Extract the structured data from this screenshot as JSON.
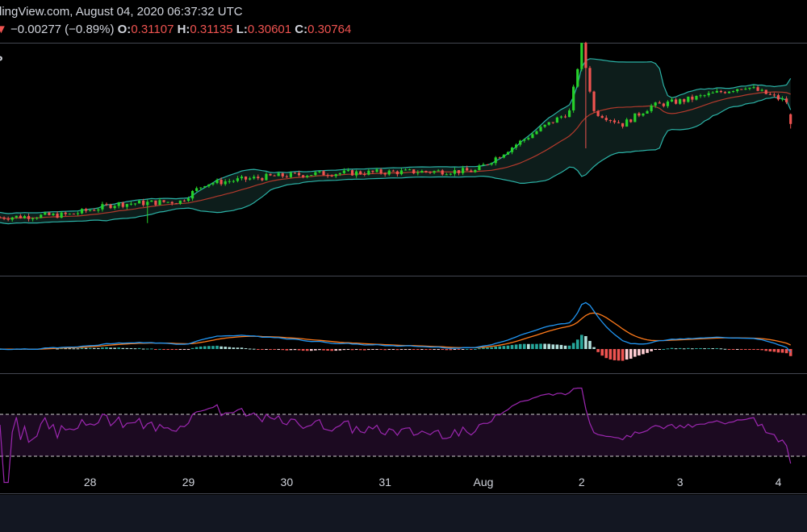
{
  "header": {
    "source_text": "dingView.com, August 04, 2020 06:37:32 UTC",
    "arrow": "▼",
    "change": "−0.00277 (−0.89%)",
    "o_label": "O:",
    "o_value": "0.31107",
    "h_label": "H:",
    "h_value": "0.31135",
    "l_label": "L:",
    "l_value": "0.30601",
    "c_label": "C:",
    "c_value": "0.30764",
    "symbol_fragment": "P"
  },
  "colors": {
    "up": "#26d12a",
    "down": "#ef5350",
    "band": "#2bb3a7",
    "band_fill": "#0d1d1b",
    "basis": "#b23a2c",
    "macd": "#2196f3",
    "signal": "#ff7a1a",
    "hist_up": "#26a69a",
    "hist_up_light": "#b2dfdb",
    "hist_down": "#ef5350",
    "hist_down_light": "#ffcdd2",
    "rsi": "#9c27b0",
    "rsi_fill": "#1c0a21",
    "rsi_level": "#cfcfcf",
    "axis_text": "#d1d4dc"
  },
  "chart_data": [
    {
      "type": "candlestick",
      "title": "",
      "time_labels": [
        "28",
        "29",
        "30",
        "31",
        "Aug",
        "2",
        "3",
        "4"
      ],
      "x_tick_positions_hours": [
        0,
        24,
        48,
        72,
        96,
        120,
        144,
        168
      ],
      "x_range_hours": [
        -22,
        175
      ],
      "ylim": [
        0.255,
        0.335
      ],
      "last": {
        "open": 0.31107,
        "high": 0.31135,
        "low": 0.30601,
        "close": 0.30764
      },
      "overlays": [
        "Bollinger Bands (20, 2)"
      ],
      "grid": false
    },
    {
      "type": "line",
      "indicator": "MACD",
      "series_lines": [
        "MACD",
        "Signal"
      ],
      "histogram": true
    },
    {
      "type": "line",
      "indicator": "RSI",
      "levels": [
        70,
        30
      ],
      "ylim": [
        0,
        100
      ]
    }
  ]
}
